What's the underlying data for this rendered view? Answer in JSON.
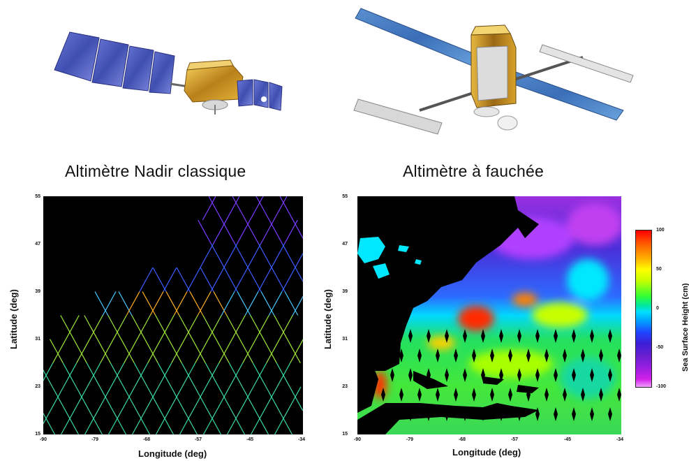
{
  "titles": {
    "left": "Altimètre Nadir classique",
    "right": "Altimètre à fauchée"
  },
  "map_left": {
    "ylabel": "Latitude (deg)",
    "xlabel": "Longitude (deg)",
    "yticks": [
      "55",
      "47",
      "39",
      "31",
      "23",
      "15"
    ],
    "xticks": [
      "-90",
      "-79",
      "-68",
      "-57",
      "-45",
      "-34"
    ]
  },
  "map_right": {
    "ylabel": "Latitude (deg)",
    "xlabel": "Longitude (deg)",
    "yticks": [
      "55",
      "47",
      "39",
      "31",
      "23",
      "15"
    ],
    "xticks": [
      "-90",
      "-79",
      "-68",
      "-57",
      "-45",
      "-34"
    ]
  },
  "colorbar": {
    "label": "Sea Surface Height (cm)",
    "ticks": [
      "100",
      "50",
      "0",
      "-50",
      "-100"
    ]
  },
  "colors": {
    "background": "#ffffff",
    "map_background": "#000000",
    "solar_panel": "#4a5ab8",
    "gold_foil": "#d9a21e"
  }
}
